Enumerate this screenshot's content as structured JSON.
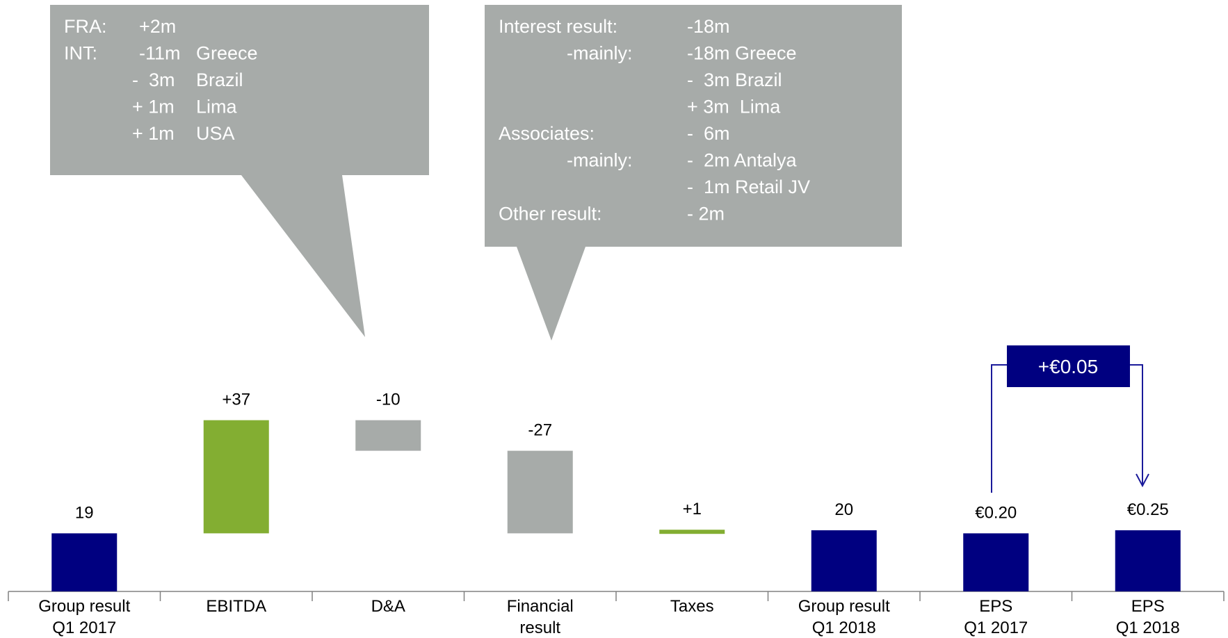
{
  "colors": {
    "navy": "#000080",
    "green": "#83ae32",
    "gray": "#a7aba9",
    "white": "#ffffff",
    "axis": "#808080",
    "connector": "#1a1a9a"
  },
  "callouts": [
    {
      "rows": [
        [
          "FRA:",
          "+2m",
          ""
        ],
        [
          "INT:",
          "-11m",
          "Greece"
        ],
        [
          "",
          "-  3m",
          "Brazil"
        ],
        [
          "",
          "+ 1m",
          "Lima"
        ],
        [
          "",
          "+ 1m",
          "USA"
        ]
      ]
    },
    {
      "rows": [
        [
          "Interest result:",
          "-18m"
        ],
        [
          "-mainly:",
          "-18m Greece"
        ],
        [
          "",
          "-  3m Brazil"
        ],
        [
          "",
          "+ 3m  Lima"
        ],
        [
          "Associates:",
          "-  6m"
        ],
        [
          "-mainly:",
          "-  2m Antalya"
        ],
        [
          "",
          "-  1m Retail JV"
        ],
        [
          "Other result:",
          "- 2m"
        ]
      ]
    }
  ],
  "difference_box": {
    "label": "+€0.05"
  },
  "chart_data": {
    "type": "bar",
    "subtype": "waterfall",
    "title": "",
    "xlabel": "",
    "ylabel": "",
    "ylim": [
      0,
      130
    ],
    "grid": false,
    "legend": "none",
    "bars": [
      {
        "category": [
          "Group result",
          "Q1 2017"
        ],
        "kind": "total",
        "start": 0,
        "end": 19,
        "label": "19",
        "color": "navy"
      },
      {
        "category": [
          "EBITDA"
        ],
        "kind": "increase",
        "start": 19,
        "end": 56,
        "label": "+37",
        "color": "green"
      },
      {
        "category": [
          "D&A"
        ],
        "kind": "decrease",
        "start": 56,
        "end": 46,
        "label": "-10",
        "color": "gray"
      },
      {
        "category": [
          "Financial",
          "result"
        ],
        "kind": "decrease",
        "start": 46,
        "end": 19,
        "label": "-27",
        "color": "gray"
      },
      {
        "category": [
          "Taxes"
        ],
        "kind": "increase",
        "start": 19,
        "end": 20,
        "label": "+1",
        "color": "green"
      },
      {
        "category": [
          "Group result",
          "Q1 2018"
        ],
        "kind": "total",
        "start": 0,
        "end": 20,
        "label": "20",
        "color": "navy"
      },
      {
        "category": [
          "EPS",
          "Q1 2017"
        ],
        "kind": "eps",
        "start": 0,
        "end": 19,
        "label": "€0.20",
        "color": "navy"
      },
      {
        "category": [
          "EPS",
          "Q1 2018"
        ],
        "kind": "eps",
        "start": 0,
        "end": 20,
        "label": "€0.25",
        "color": "navy"
      }
    ]
  }
}
